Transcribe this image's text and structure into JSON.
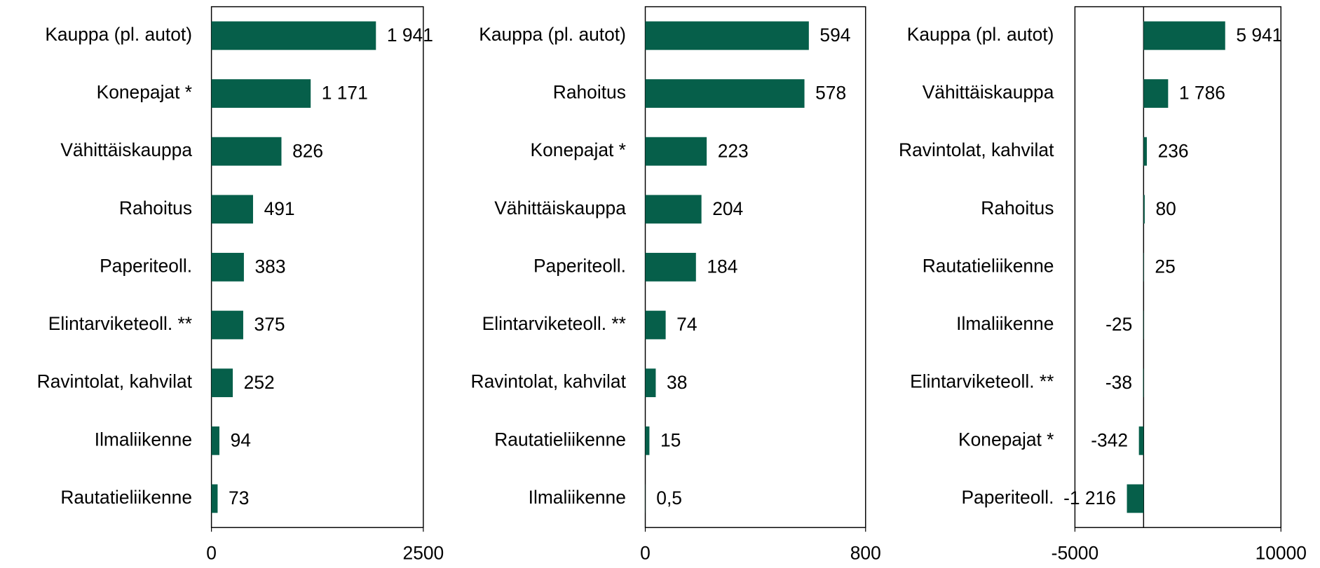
{
  "chart_data": [
    {
      "type": "bar",
      "orientation": "horizontal",
      "color": "#065f4a",
      "categories": [
        "Kauppa (pl. autot)",
        "Konepajat *",
        "Vähittäiskauppa",
        "Rahoitus",
        "Paperiteoll.",
        "Elintarviketeoll. **",
        "Ravintolat, kahvilat",
        "Ilmaliikenne",
        "Rautatieliikenne"
      ],
      "values": [
        1941,
        1171,
        826,
        491,
        383,
        375,
        252,
        94,
        73
      ],
      "value_labels": [
        "1 941",
        "1 171",
        "826",
        "491",
        "383",
        "375",
        "252",
        "94",
        "73"
      ],
      "xlim": [
        0,
        2500
      ],
      "xticks": [
        0,
        2500
      ]
    },
    {
      "type": "bar",
      "orientation": "horizontal",
      "color": "#065f4a",
      "categories": [
        "Kauppa (pl. autot)",
        "Rahoitus",
        "Konepajat *",
        "Vähittäiskauppa",
        "Paperiteoll.",
        "Elintarviketeoll. **",
        "Ravintolat, kahvilat",
        "Rautatieliikenne",
        "Ilmaliikenne"
      ],
      "values": [
        594,
        578,
        223,
        204,
        184,
        74,
        38,
        15,
        0.5
      ],
      "value_labels": [
        "594",
        "578",
        "223",
        "204",
        "184",
        "74",
        "38",
        "15",
        "0,5"
      ],
      "xlim": [
        0,
        800
      ],
      "xticks": [
        0,
        800
      ]
    },
    {
      "type": "bar",
      "orientation": "horizontal",
      "color": "#065f4a",
      "categories": [
        "Kauppa (pl. autot)",
        "Vähittäiskauppa",
        "Ravintolat, kahvilat",
        "Rahoitus",
        "Rautatieliikenne",
        "Ilmaliikenne",
        "Elintarviketeoll. **",
        "Konepajat *",
        "Paperiteoll."
      ],
      "values": [
        5941,
        1786,
        236,
        80,
        25,
        -25,
        -38,
        -342,
        -1216
      ],
      "value_labels": [
        "5 941",
        "1 786",
        "236",
        "80",
        "25",
        "-25",
        "-38",
        "-342",
        "-1 216"
      ],
      "xlim": [
        -5000,
        10000
      ],
      "xticks": [
        -5000,
        10000
      ]
    }
  ]
}
